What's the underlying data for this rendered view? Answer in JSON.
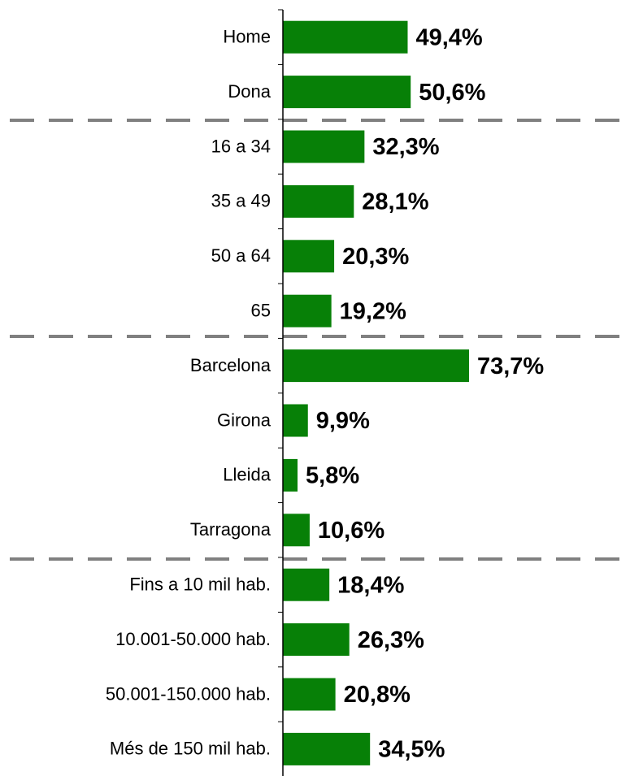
{
  "chart_data": {
    "type": "bar",
    "orientation": "horizontal",
    "categories": [
      "Home",
      "Dona",
      "16 a 34",
      "35 a 49",
      "50 a 64",
      "65",
      "Barcelona",
      "Girona",
      "Lleida",
      "Tarragona",
      "Fins a 10 mil hab.",
      "10.001-50.000 hab.",
      "50.001-150.000 hab.",
      "Més de 150 mil hab."
    ],
    "values": [
      49.4,
      50.6,
      32.3,
      28.1,
      20.3,
      19.2,
      73.7,
      9.9,
      5.8,
      10.6,
      18.4,
      26.3,
      20.8,
      34.5
    ],
    "value_labels": [
      "49,4%",
      "50,6%",
      "32,3%",
      "28,1%",
      "20,3%",
      "19,2%",
      "73,7%",
      "9,9%",
      "5,8%",
      "10,6%",
      "18,4%",
      "26,3%",
      "20,8%",
      "34,5%"
    ],
    "color": "#078007",
    "xlim": [
      0,
      100
    ]
  }
}
